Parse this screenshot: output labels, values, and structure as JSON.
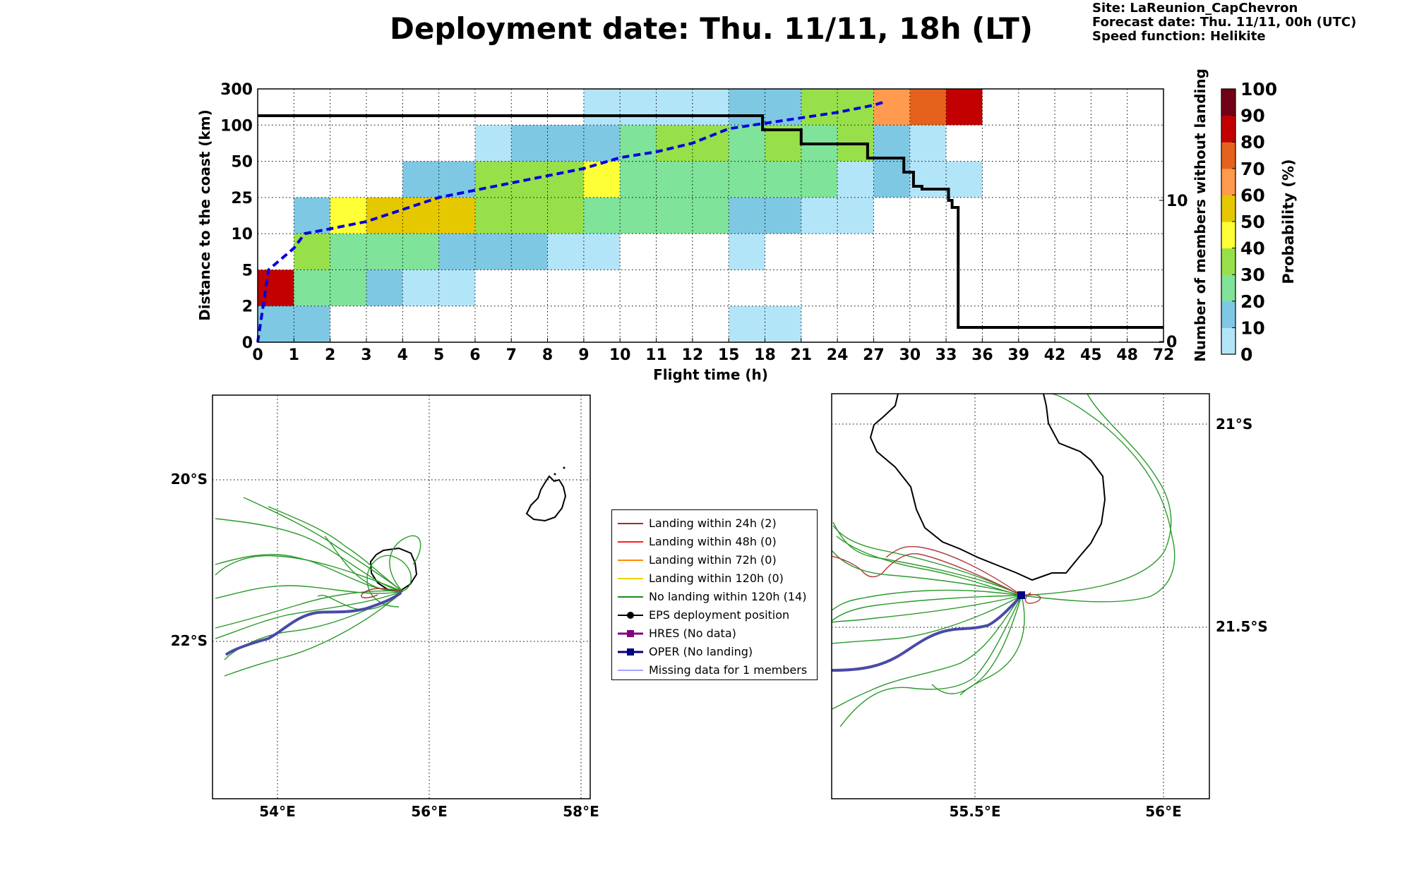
{
  "header": {
    "title": "Deployment date: Thu. 11/11, 18h (LT)",
    "site": "Site: LaReunion_CapChevron",
    "forecast": "Forecast date: Thu. 11/11, 00h (UTC)",
    "speed": "Speed function: Helikite"
  },
  "colors": {
    "p0": "#b3e5f9",
    "p10": "#7ec8e3",
    "p20": "#7fe39a",
    "p30": "#97e04a",
    "p40": "#ffff38",
    "p50": "#e6c800",
    "p60": "#ff9a4e",
    "p70": "#e5621c",
    "p80": "#c20000",
    "p90": "#720017",
    "median": "#0000dd",
    "members": "#000000"
  },
  "chart_data": [
    {
      "type": "heatmap",
      "xlabel": "Flight time (h)",
      "ylabel": "Distance to the coast (km)",
      "ylabel_right": "Number of members without landing",
      "x_ticks": [
        "0",
        "1",
        "2",
        "3",
        "4",
        "5",
        "6",
        "7",
        "8",
        "9",
        "10",
        "11",
        "12",
        "15",
        "18",
        "21",
        "24",
        "27",
        "30",
        "33",
        "36",
        "39",
        "42",
        "45",
        "48",
        "72"
      ],
      "y_ticks": [
        "0",
        "2",
        "5",
        "10",
        "25",
        "50",
        "100",
        "300"
      ],
      "y_right_ticks": [
        "0",
        "10"
      ],
      "grid": true,
      "colorbar": {
        "label": "Probability (%)",
        "ticks": [
          "0",
          "10",
          "20",
          "30",
          "40",
          "50",
          "60",
          "70",
          "80",
          "90",
          "100"
        ]
      },
      "cells": [
        {
          "x": [
            "0",
            "2"
          ],
          "y": [
            "0",
            "2"
          ],
          "p": 10
        },
        {
          "x": [
            "15",
            "21"
          ],
          "y": [
            "0",
            "2"
          ],
          "p": 0
        },
        {
          "x": [
            "0",
            "1"
          ],
          "y": [
            "2",
            "5"
          ],
          "p": 80
        },
        {
          "x": [
            "1",
            "3"
          ],
          "y": [
            "2",
            "5"
          ],
          "p": 20
        },
        {
          "x": [
            "3",
            "4"
          ],
          "y": [
            "2",
            "5"
          ],
          "p": 10
        },
        {
          "x": [
            "4",
            "6"
          ],
          "y": [
            "2",
            "5"
          ],
          "p": 0
        },
        {
          "x": [
            "1",
            "2"
          ],
          "y": [
            "5",
            "10"
          ],
          "p": 30
        },
        {
          "x": [
            "2",
            "5"
          ],
          "y": [
            "5",
            "10"
          ],
          "p": 20
        },
        {
          "x": [
            "5",
            "8"
          ],
          "y": [
            "5",
            "10"
          ],
          "p": 10
        },
        {
          "x": [
            "8",
            "10"
          ],
          "y": [
            "5",
            "10"
          ],
          "p": 0
        },
        {
          "x": [
            "15",
            "18"
          ],
          "y": [
            "5",
            "10"
          ],
          "p": 0
        },
        {
          "x": [
            "1",
            "2"
          ],
          "y": [
            "10",
            "25"
          ],
          "p": 10
        },
        {
          "x": [
            "2",
            "3"
          ],
          "y": [
            "10",
            "25"
          ],
          "p": 40
        },
        {
          "x": [
            "3",
            "6"
          ],
          "y": [
            "10",
            "25"
          ],
          "p": 50
        },
        {
          "x": [
            "6",
            "9"
          ],
          "y": [
            "10",
            "25"
          ],
          "p": 30
        },
        {
          "x": [
            "9",
            "15"
          ],
          "y": [
            "10",
            "25"
          ],
          "p": 20
        },
        {
          "x": [
            "15",
            "21"
          ],
          "y": [
            "10",
            "25"
          ],
          "p": 10
        },
        {
          "x": [
            "21",
            "27"
          ],
          "y": [
            "10",
            "25"
          ],
          "p": 0
        },
        {
          "x": [
            "4",
            "6"
          ],
          "y": [
            "25",
            "50"
          ],
          "p": 10
        },
        {
          "x": [
            "6",
            "9"
          ],
          "y": [
            "25",
            "50"
          ],
          "p": 30
        },
        {
          "x": [
            "9",
            "10"
          ],
          "y": [
            "25",
            "50"
          ],
          "p": 40
        },
        {
          "x": [
            "10",
            "24"
          ],
          "y": [
            "25",
            "50"
          ],
          "p": 20
        },
        {
          "x": [
            "24",
            "27"
          ],
          "y": [
            "25",
            "50"
          ],
          "p": 0
        },
        {
          "x": [
            "27",
            "30"
          ],
          "y": [
            "25",
            "50"
          ],
          "p": 10
        },
        {
          "x": [
            "30",
            "36"
          ],
          "y": [
            "25",
            "50"
          ],
          "p": 0
        },
        {
          "x": [
            "6",
            "7"
          ],
          "y": [
            "50",
            "100"
          ],
          "p": 0
        },
        {
          "x": [
            "7",
            "10"
          ],
          "y": [
            "50",
            "100"
          ],
          "p": 10
        },
        {
          "x": [
            "10",
            "11"
          ],
          "y": [
            "50",
            "100"
          ],
          "p": 20
        },
        {
          "x": [
            "11",
            "15"
          ],
          "y": [
            "50",
            "100"
          ],
          "p": 30
        },
        {
          "x": [
            "15",
            "18"
          ],
          "y": [
            "50",
            "100"
          ],
          "p": 20
        },
        {
          "x": [
            "18",
            "21"
          ],
          "y": [
            "50",
            "100"
          ],
          "p": 30
        },
        {
          "x": [
            "21",
            "24"
          ],
          "y": [
            "50",
            "100"
          ],
          "p": 20
        },
        {
          "x": [
            "24",
            "27"
          ],
          "y": [
            "50",
            "100"
          ],
          "p": 30
        },
        {
          "x": [
            "27",
            "30"
          ],
          "y": [
            "50",
            "100"
          ],
          "p": 10
        },
        {
          "x": [
            "30",
            "33"
          ],
          "y": [
            "50",
            "100"
          ],
          "p": 0
        },
        {
          "x": [
            "9",
            "15"
          ],
          "y": [
            "100",
            "300"
          ],
          "p": 0
        },
        {
          "x": [
            "15",
            "21"
          ],
          "y": [
            "100",
            "300"
          ],
          "p": 10
        },
        {
          "x": [
            "21",
            "27"
          ],
          "y": [
            "100",
            "300"
          ],
          "p": 30
        },
        {
          "x": [
            "27",
            "30"
          ],
          "y": [
            "100",
            "300"
          ],
          "p": 60
        },
        {
          "x": [
            "30",
            "33"
          ],
          "y": [
            "100",
            "300"
          ],
          "p": 70
        },
        {
          "x": [
            "33",
            "36"
          ],
          "y": [
            "100",
            "300"
          ],
          "p": 80
        }
      ],
      "median_distance_line": [
        [
          "0",
          "0"
        ],
        [
          "0.3",
          "5"
        ],
        [
          "1",
          "8"
        ],
        [
          "1.3",
          "10"
        ],
        [
          "2",
          "12"
        ],
        [
          "3",
          "15"
        ],
        [
          "4",
          "20"
        ],
        [
          "5",
          "25"
        ],
        [
          "6",
          "30"
        ],
        [
          "7",
          "35"
        ],
        [
          "8",
          "40"
        ],
        [
          "9",
          "45"
        ],
        [
          "10",
          "55"
        ],
        [
          "11",
          "63"
        ],
        [
          "12",
          "75"
        ],
        [
          "15",
          "95"
        ],
        [
          "18",
          "110"
        ],
        [
          "21",
          "140"
        ],
        [
          "24",
          "170"
        ],
        [
          "27",
          "210"
        ],
        [
          "28",
          "230"
        ]
      ],
      "members_without_landing": [
        [
          "0",
          "16"
        ],
        [
          "17.8",
          "16"
        ],
        [
          "17.8",
          "15"
        ],
        [
          "21",
          "15"
        ],
        [
          "21",
          "14"
        ],
        [
          "26.5",
          "14"
        ],
        [
          "26.5",
          "13"
        ],
        [
          "29.5",
          "13"
        ],
        [
          "29.5",
          "12"
        ],
        [
          "30.3",
          "12"
        ],
        [
          "30.3",
          "11"
        ],
        [
          "31",
          "11"
        ],
        [
          "31",
          "10.8"
        ],
        [
          "33.2",
          "10.8"
        ],
        [
          "33.2",
          "10"
        ],
        [
          "33.5",
          "10"
        ],
        [
          "33.5",
          "9.5"
        ],
        [
          "34",
          "9.5"
        ],
        [
          "34",
          "1"
        ],
        [
          "72",
          "1"
        ]
      ]
    }
  ],
  "map_left": {
    "lon_ticks": [
      "54°E",
      "56°E",
      "58°E"
    ],
    "lat_ticks": [
      "20°S",
      "22°S"
    ]
  },
  "map_right": {
    "lon_ticks": [
      "55.5°E",
      "56°E"
    ],
    "lat_ticks": [
      "21°S",
      "21.5°S"
    ]
  },
  "legend": [
    {
      "label": "Landing within 24h (2)",
      "color": "#a52a2a",
      "marker": "none",
      "lw": 2
    },
    {
      "label": "Landing within 48h (0)",
      "color": "#ff2020",
      "marker": "none",
      "lw": 2
    },
    {
      "label": "Landing within 72h (0)",
      "color": "#ff8c00",
      "marker": "none",
      "lw": 2
    },
    {
      "label": "Landing within 120h (0)",
      "color": "#f0d000",
      "marker": "none",
      "lw": 2
    },
    {
      "label": "No landing within 120h (14)",
      "color": "#1a8a1a",
      "marker": "none",
      "lw": 2
    },
    {
      "label": "EPS deployment position",
      "color": "#000000",
      "marker": "circle",
      "lw": 2
    },
    {
      "label": "HRES (No data)",
      "color": "#800080",
      "marker": "square",
      "lw": 3
    },
    {
      "label": "OPER (No landing)",
      "color": "#000080",
      "marker": "square",
      "lw": 3
    },
    {
      "label": "Missing data for 1 members",
      "color": "#4a4aff",
      "marker": "none",
      "lw": 1
    }
  ]
}
